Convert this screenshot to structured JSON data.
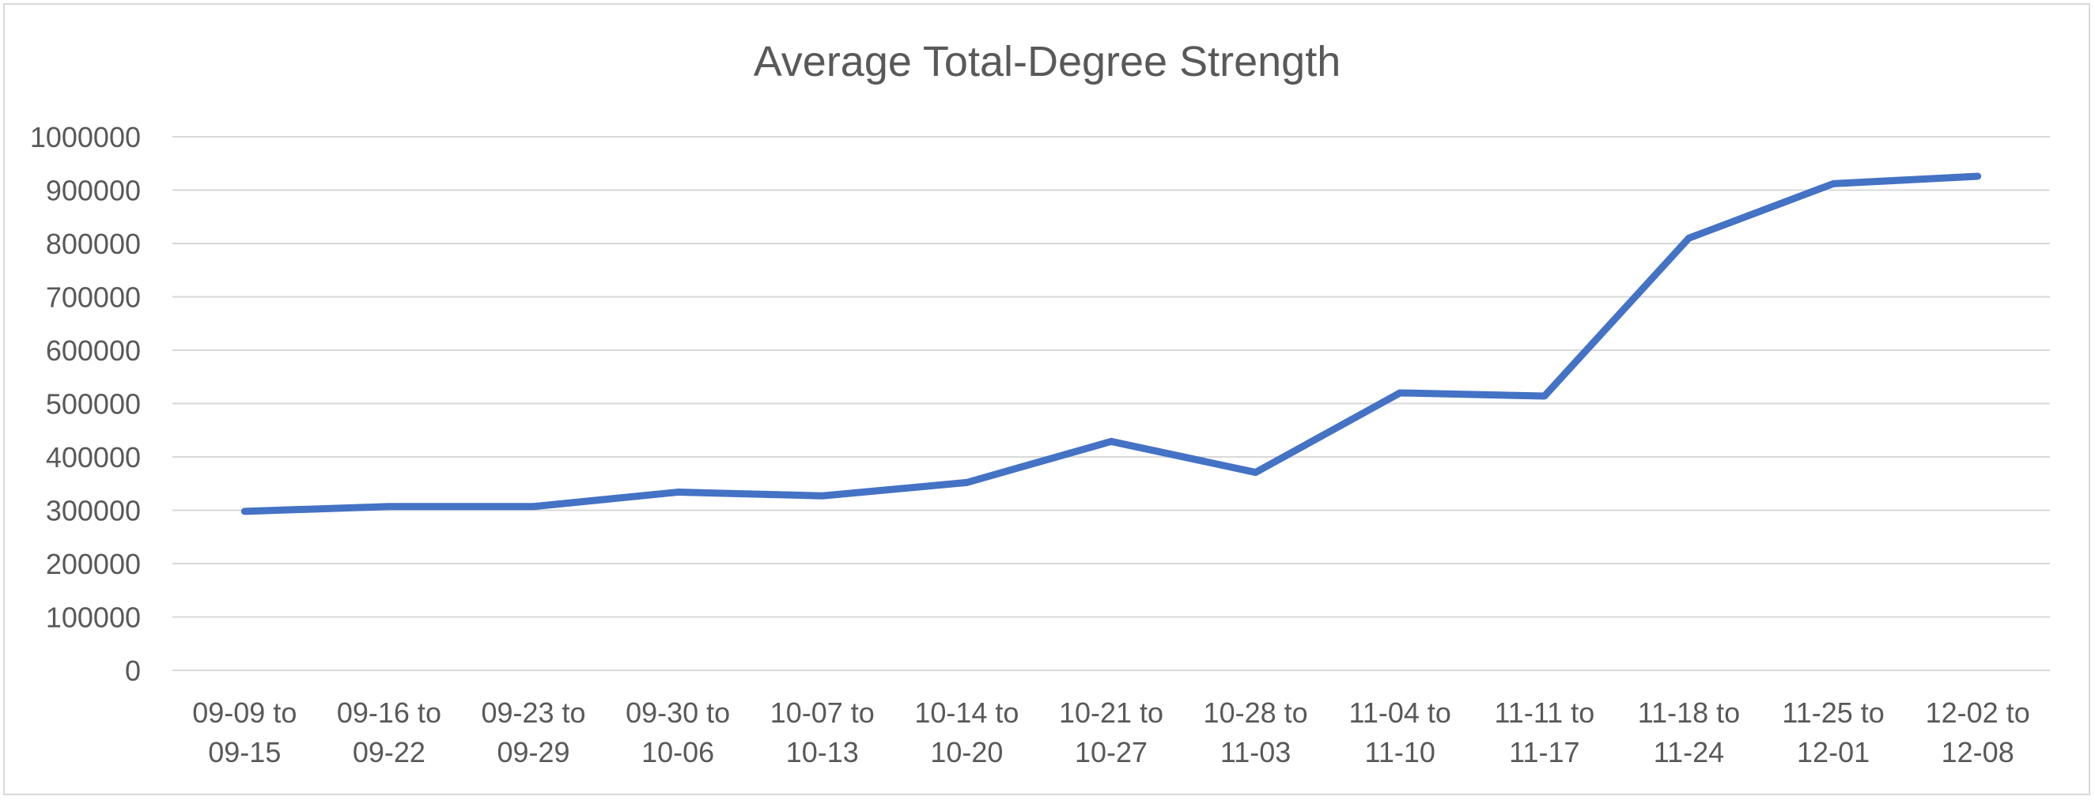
{
  "chart_data": {
    "type": "line",
    "title": "Average Total-Degree Strength",
    "xlabel": "",
    "ylabel": "",
    "categories": [
      [
        "09-09 to",
        "09-15"
      ],
      [
        "09-16 to",
        "09-22"
      ],
      [
        "09-23 to",
        "09-29"
      ],
      [
        "09-30 to",
        "10-06"
      ],
      [
        "10-07 to",
        "10-13"
      ],
      [
        "10-14 to",
        "10-20"
      ],
      [
        "10-21 to",
        "10-27"
      ],
      [
        "10-28 to",
        "11-03"
      ],
      [
        "11-04 to",
        "11-10"
      ],
      [
        "11-11 to",
        "11-17"
      ],
      [
        "11-18 to",
        "11-24"
      ],
      [
        "11-25 to",
        "12-01"
      ],
      [
        "12-02 to",
        "12-08"
      ]
    ],
    "series": [
      {
        "values": [
          298000,
          307000,
          307000,
          334000,
          327000,
          352000,
          429000,
          371000,
          520000,
          514000,
          810000,
          912000,
          926000
        ],
        "color": "#4472c4"
      }
    ],
    "ylim": [
      0,
      1000000
    ],
    "yticks": [
      "0",
      "100000",
      "200000",
      "300000",
      "400000",
      "500000",
      "600000",
      "700000",
      "800000",
      "900000",
      "1000000"
    ],
    "grid": true,
    "legend": "none"
  }
}
